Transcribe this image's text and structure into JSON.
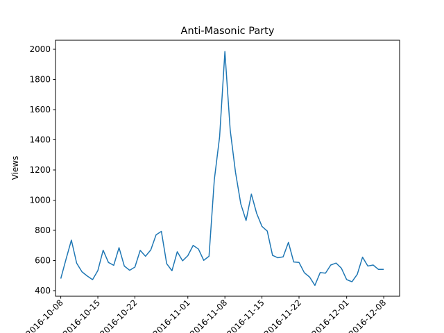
{
  "chart_data": {
    "type": "line",
    "title": "Anti-Masonic Party",
    "xlabel": "",
    "ylabel": "Views",
    "x_tick_labels": [
      "2016-10-08",
      "2016-10-15",
      "2016-10-22",
      "2016-11-01",
      "2016-11-08",
      "2016-11-15",
      "2016-11-22",
      "2016-12-01",
      "2016-12-08"
    ],
    "y_ticks": [
      400,
      600,
      800,
      1000,
      1200,
      1400,
      1600,
      1800,
      2000
    ],
    "ylim": [
      363,
      2060
    ],
    "xlim": [
      "2016-10-07",
      "2016-12-11"
    ],
    "grid": false,
    "series_color": "#1f77b4",
    "x": [
      "2016-10-08",
      "2016-10-09",
      "2016-10-10",
      "2016-10-11",
      "2016-10-12",
      "2016-10-13",
      "2016-10-14",
      "2016-10-15",
      "2016-10-16",
      "2016-10-17",
      "2016-10-18",
      "2016-10-19",
      "2016-10-20",
      "2016-10-21",
      "2016-10-22",
      "2016-10-23",
      "2016-10-24",
      "2016-10-25",
      "2016-10-26",
      "2016-10-27",
      "2016-10-28",
      "2016-10-29",
      "2016-10-30",
      "2016-10-31",
      "2016-11-01",
      "2016-11-02",
      "2016-11-03",
      "2016-11-04",
      "2016-11-05",
      "2016-11-06",
      "2016-11-07",
      "2016-11-08",
      "2016-11-09",
      "2016-11-10",
      "2016-11-11",
      "2016-11-12",
      "2016-11-13",
      "2016-11-14",
      "2016-11-15",
      "2016-11-16",
      "2016-11-17",
      "2016-11-18",
      "2016-11-19",
      "2016-11-20",
      "2016-11-21",
      "2016-11-22",
      "2016-11-23",
      "2016-11-24",
      "2016-11-25",
      "2016-11-26",
      "2016-11-27",
      "2016-11-28",
      "2016-11-29",
      "2016-11-30",
      "2016-12-01",
      "2016-12-02",
      "2016-12-03",
      "2016-12-04",
      "2016-12-05",
      "2016-12-06",
      "2016-12-07",
      "2016-12-08"
    ],
    "values": [
      480,
      610,
      735,
      582,
      525,
      497,
      473,
      533,
      668,
      587,
      568,
      685,
      563,
      535,
      556,
      667,
      628,
      670,
      770,
      793,
      579,
      532,
      658,
      598,
      632,
      700,
      676,
      601,
      628,
      1135,
      1420,
      1985,
      1465,
      1185,
      975,
      865,
      1040,
      912,
      826,
      795,
      634,
      618,
      624,
      720,
      590,
      587,
      519,
      490,
      435,
      520,
      516,
      570,
      583,
      549,
      473,
      459,
      508,
      622,
      563,
      570,
      541,
      541
    ]
  }
}
